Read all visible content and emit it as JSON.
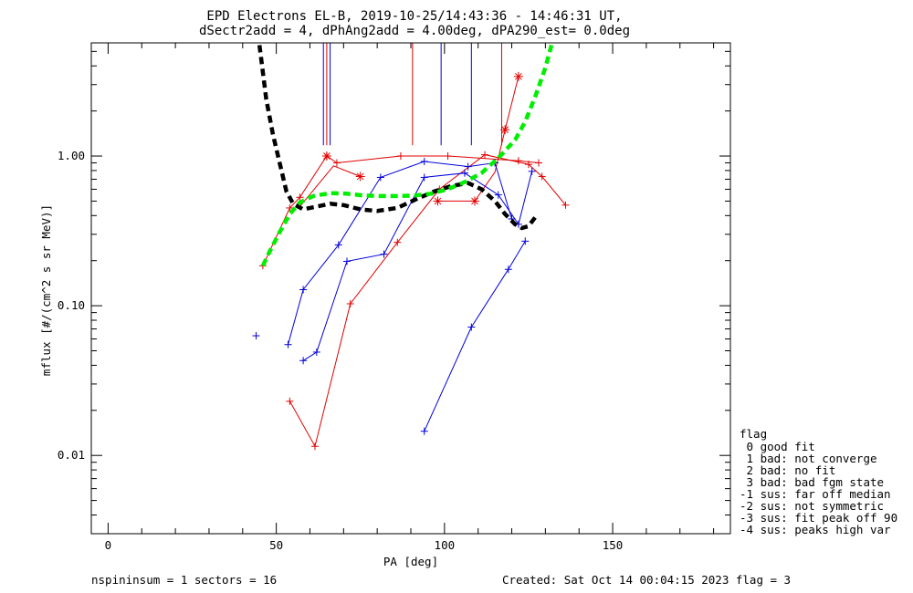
{
  "chart_data": {
    "type": "scatter",
    "title": "EPD Electrons EL-B, 2019-10-25/14:43:36 - 14:46:31 UT,",
    "subtitle": "dSectr2add = 4, dPhAng2add = 4.00deg, dPA290_est=   0.0deg",
    "xlabel": "PA [deg]",
    "ylabel": "mflux [#/(cm^2 s sr MeV)]",
    "xlim": [
      -5,
      185
    ],
    "ylim": [
      0.003,
      5.7
    ],
    "yscale": "log",
    "x_ticks": [
      0,
      50,
      100,
      150
    ],
    "x_tick_labels": [
      "0",
      "50",
      "100",
      "150"
    ],
    "y_ticks": [
      0.01,
      0.1,
      1.0
    ],
    "y_tick_labels": [
      "0.01",
      "0.10",
      "1.00"
    ],
    "grid": false,
    "colors": {
      "red": "#e00000",
      "blue": "#0000dd",
      "green": "#00ee00",
      "black": "#000000"
    },
    "series": [
      {
        "color": "red",
        "marker": "plus",
        "line": true,
        "points": [
          [
            46,
            0.185
          ],
          [
            54,
            0.45
          ],
          [
            57,
            0.53
          ],
          [
            65,
            1.0
          ],
          [
            68,
            0.9
          ],
          [
            87,
            1.0
          ],
          [
            101,
            1.0
          ],
          [
            122,
            0.93
          ],
          [
            128,
            0.9
          ]
        ]
      },
      {
        "color": "red",
        "marker": "plus",
        "line": true,
        "points": [
          [
            54,
            0.023
          ],
          [
            61.5,
            0.0115
          ],
          [
            72,
            0.103
          ],
          [
            86,
            0.265
          ],
          [
            98.5,
            0.6
          ],
          [
            112,
            1.02
          ],
          [
            125,
            0.88
          ],
          [
            129,
            0.73
          ],
          [
            136,
            0.47
          ]
        ]
      },
      {
        "color": "red",
        "marker": "none",
        "line": true,
        "points": [
          [
            57,
            0.46
          ],
          [
            67,
            0.86
          ],
          [
            75,
            0.73
          ]
        ]
      },
      {
        "color": "red",
        "marker": "none",
        "line": true,
        "points": [
          [
            98,
            0.5
          ],
          [
            109,
            0.5
          ],
          [
            115,
            0.78
          ],
          [
            118,
            1.5
          ],
          [
            122,
            3.4
          ]
        ]
      },
      {
        "color": "red",
        "marker": "asterisk",
        "line": false,
        "points": [
          [
            65,
            1.0
          ],
          [
            75,
            0.73
          ],
          [
            98,
            0.5
          ],
          [
            109,
            0.5
          ],
          [
            118,
            1.5
          ],
          [
            122,
            3.4
          ]
        ]
      },
      {
        "color": "blue",
        "marker": "plus",
        "line": true,
        "points": [
          [
            53.5,
            0.055
          ],
          [
            58,
            0.128
          ],
          [
            68.5,
            0.255
          ],
          [
            81,
            0.72
          ],
          [
            94,
            0.92
          ],
          [
            107,
            0.85
          ],
          [
            115,
            0.9
          ],
          [
            120,
            0.38
          ]
        ]
      },
      {
        "color": "blue",
        "marker": "plus",
        "line": true,
        "points": [
          [
            58,
            0.043
          ],
          [
            62,
            0.049
          ],
          [
            71,
            0.198
          ],
          [
            82,
            0.221
          ],
          [
            94,
            0.72
          ],
          [
            106,
            0.77
          ],
          [
            116,
            0.55
          ],
          [
            122,
            0.35
          ],
          [
            126,
            0.79
          ]
        ]
      },
      {
        "color": "blue",
        "marker": "plus",
        "line": true,
        "points": [
          [
            94,
            0.0145
          ],
          [
            108,
            0.072
          ],
          [
            119,
            0.175
          ],
          [
            124,
            0.27
          ]
        ]
      },
      {
        "color": "blue",
        "marker": "plus",
        "line": false,
        "points": [
          [
            44,
            0.063
          ]
        ]
      },
      {
        "color": "black",
        "style": "dashed",
        "width": 4.5,
        "points": [
          [
            45,
            5.5
          ],
          [
            47,
            2.4
          ],
          [
            49,
            1.4
          ],
          [
            51,
            0.9
          ],
          [
            53,
            0.58
          ],
          [
            55,
            0.48
          ],
          [
            58,
            0.44
          ],
          [
            62,
            0.46
          ],
          [
            66,
            0.48
          ],
          [
            70,
            0.47
          ],
          [
            75,
            0.44
          ],
          [
            80,
            0.43
          ],
          [
            86,
            0.45
          ],
          [
            92,
            0.52
          ],
          [
            97,
            0.58
          ],
          [
            102,
            0.63
          ],
          [
            107,
            0.66
          ],
          [
            111,
            0.6
          ],
          [
            115,
            0.5
          ],
          [
            118,
            0.41
          ],
          [
            121,
            0.35
          ],
          [
            123,
            0.33
          ],
          [
            125,
            0.34
          ],
          [
            127,
            0.39
          ]
        ]
      },
      {
        "color": "green",
        "style": "dashed",
        "width": 4.5,
        "points": [
          [
            46,
            0.185
          ],
          [
            48,
            0.23
          ],
          [
            51,
            0.31
          ],
          [
            54,
            0.41
          ],
          [
            57,
            0.49
          ],
          [
            61,
            0.54
          ],
          [
            66,
            0.565
          ],
          [
            71,
            0.56
          ],
          [
            76,
            0.545
          ],
          [
            81,
            0.54
          ],
          [
            86,
            0.54
          ],
          [
            91,
            0.545
          ],
          [
            96,
            0.56
          ],
          [
            101,
            0.6
          ],
          [
            106,
            0.67
          ],
          [
            111,
            0.77
          ],
          [
            116,
            0.97
          ],
          [
            121,
            1.28
          ],
          [
            124,
            1.7
          ],
          [
            127,
            2.5
          ],
          [
            130,
            3.9
          ],
          [
            132,
            5.7
          ]
        ]
      }
    ],
    "vertical_lines": [
      {
        "x": 65.0,
        "color": "red"
      },
      {
        "x": 64.0,
        "color": "blue"
      },
      {
        "x": 66.0,
        "color": "blue"
      },
      {
        "x": 90.5,
        "color": "red"
      },
      {
        "x": 99.0,
        "color": "blue"
      },
      {
        "x": 108.0,
        "color": "blue"
      },
      {
        "x": 117.0,
        "color": "red"
      }
    ],
    "vertical_lines_ymin": 1.18
  },
  "footer": {
    "left": "nspininsum =  1  sectors = 16",
    "right": "Created: Sat Oct 14 00:04:15 2023   flag = 3"
  },
  "flag_legend": {
    "title": "flag",
    "items": [
      " 0 good fit",
      " 1 bad: not converge",
      " 2 bad: no fit",
      " 3 bad: bad fgm state",
      "-1 sus: far off median",
      "-2 sus: not symmetric",
      "-3 sus: fit peak off 90",
      "-4 sus: peaks high var"
    ]
  }
}
